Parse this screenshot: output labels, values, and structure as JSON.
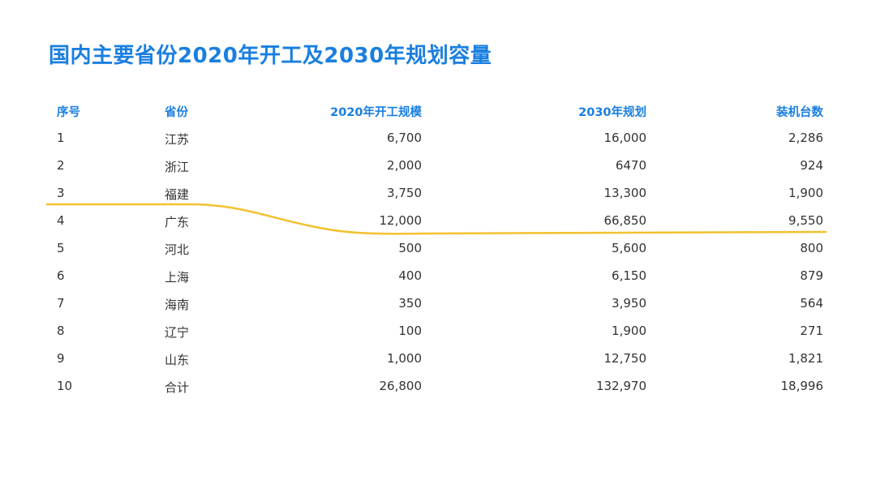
{
  "title": "国内主要省份2020年开工及2030年规划容量",
  "columns": {
    "index": "序号",
    "province": "省份",
    "start_2020": "2020年开工规模",
    "plan_2030": "2030年规划",
    "units": "装机台数"
  },
  "rows": [
    {
      "index": "1",
      "province": "江苏",
      "start_2020": "6,700",
      "plan_2030": "16,000",
      "units": "2,286"
    },
    {
      "index": "2",
      "province": "浙江",
      "start_2020": "2,000",
      "plan_2030": "6470",
      "units": "924"
    },
    {
      "index": "3",
      "province": "福建",
      "start_2020": "3,750",
      "plan_2030": "13,300",
      "units": "1,900"
    },
    {
      "index": "4",
      "province": "广东",
      "start_2020": "12,000",
      "plan_2030": "66,850",
      "units": "9,550"
    },
    {
      "index": "5",
      "province": "河北",
      "start_2020": "500",
      "plan_2030": "5,600",
      "units": "800"
    },
    {
      "index": "6",
      "province": "上海",
      "start_2020": "400",
      "plan_2030": "6,150",
      "units": "879"
    },
    {
      "index": "7",
      "province": "海南",
      "start_2020": "350",
      "plan_2030": "3,950",
      "units": "564"
    },
    {
      "index": "8",
      "province": "辽宁",
      "start_2020": "100",
      "plan_2030": "1,900",
      "units": "271"
    },
    {
      "index": "9",
      "province": "山东",
      "start_2020": "1,000",
      "plan_2030": "12,750",
      "units": "1,821"
    },
    {
      "index": "10",
      "province": "合计",
      "start_2020": "26,800",
      "plan_2030": "132,970",
      "units": "18,996"
    }
  ],
  "colors": {
    "accent": "#1a7fe0",
    "highlight_line": "#f2c12e"
  }
}
